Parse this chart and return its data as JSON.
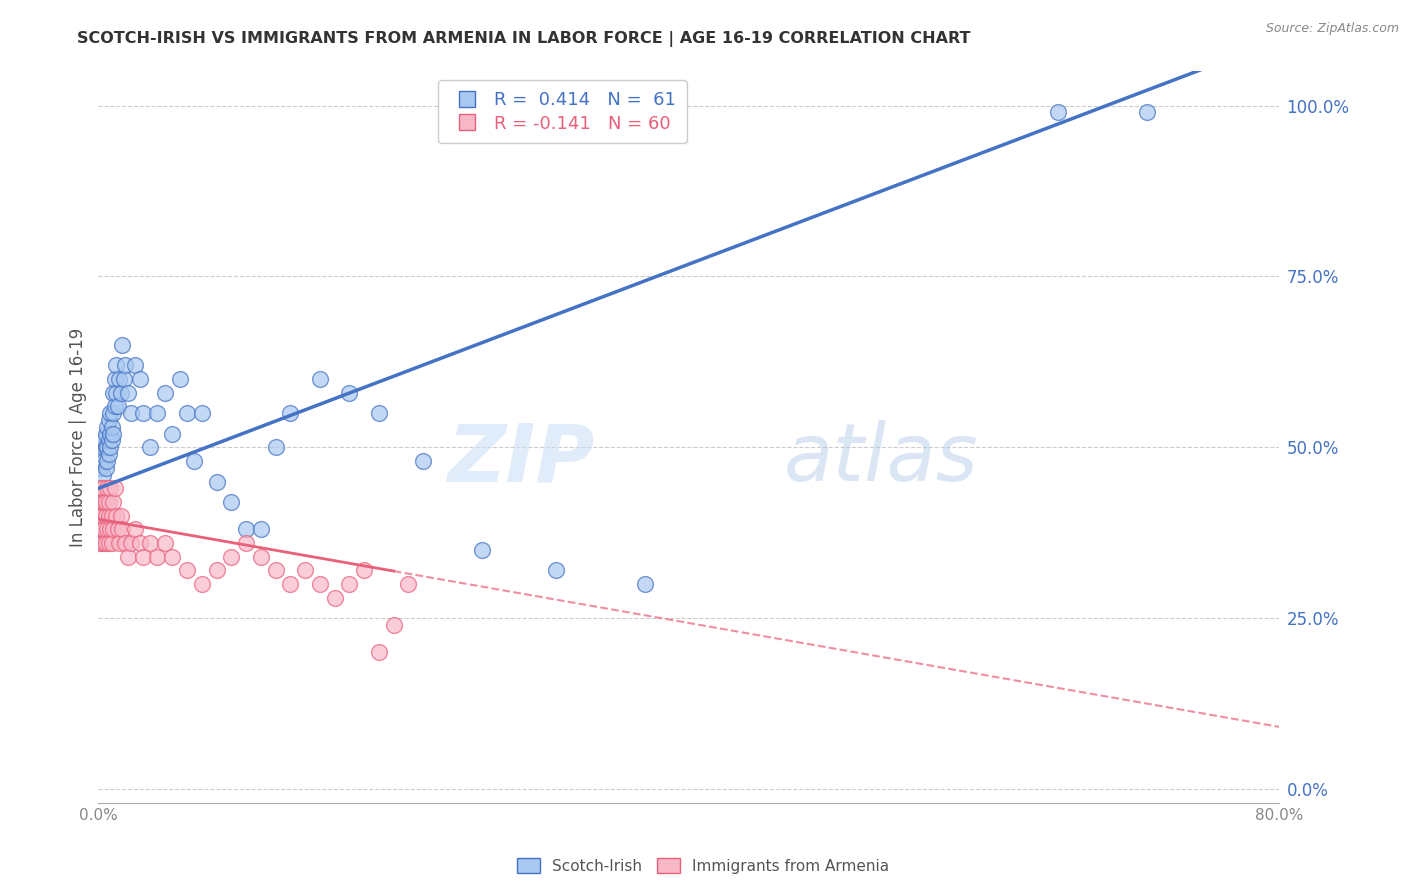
{
  "title": "SCOTCH-IRISH VS IMMIGRANTS FROM ARMENIA IN LABOR FORCE | AGE 16-19 CORRELATION CHART",
  "source": "Source: ZipAtlas.com",
  "ylabel": "In Labor Force | Age 16-19",
  "xlim": [
    0.0,
    0.8
  ],
  "ylim": [
    -0.02,
    1.05
  ],
  "blue_R": 0.414,
  "blue_N": 61,
  "pink_R": -0.141,
  "pink_N": 60,
  "blue_color": "#A8C8F0",
  "blue_line_color": "#4472C4",
  "pink_color": "#F8B8C8",
  "pink_line_color": "#E8607A",
  "legend_label_blue": "Scotch-Irish",
  "legend_label_pink": "Immigrants from Armenia",
  "watermark_zip": "ZIP",
  "watermark_atlas": "atlas",
  "background_color": "#FFFFFF",
  "grid_color": "#CCCCCC",
  "blue_line_intercept": 0.44,
  "blue_line_slope": 0.82,
  "pink_line_intercept": 0.395,
  "pink_line_slope": -0.38,
  "blue_x": [
    0.001,
    0.002,
    0.003,
    0.003,
    0.004,
    0.004,
    0.005,
    0.005,
    0.005,
    0.006,
    0.006,
    0.006,
    0.007,
    0.007,
    0.007,
    0.008,
    0.008,
    0.008,
    0.009,
    0.009,
    0.01,
    0.01,
    0.01,
    0.011,
    0.011,
    0.012,
    0.012,
    0.013,
    0.014,
    0.015,
    0.016,
    0.017,
    0.018,
    0.02,
    0.022,
    0.025,
    0.028,
    0.03,
    0.035,
    0.04,
    0.045,
    0.05,
    0.055,
    0.06,
    0.065,
    0.07,
    0.08,
    0.09,
    0.1,
    0.11,
    0.12,
    0.13,
    0.15,
    0.17,
    0.19,
    0.22,
    0.26,
    0.31,
    0.37,
    0.65,
    0.71
  ],
  "blue_y": [
    0.47,
    0.49,
    0.46,
    0.5,
    0.48,
    0.51,
    0.47,
    0.5,
    0.52,
    0.48,
    0.5,
    0.53,
    0.49,
    0.51,
    0.54,
    0.5,
    0.52,
    0.55,
    0.51,
    0.53,
    0.52,
    0.55,
    0.58,
    0.56,
    0.6,
    0.58,
    0.62,
    0.56,
    0.6,
    0.58,
    0.65,
    0.6,
    0.62,
    0.58,
    0.55,
    0.62,
    0.6,
    0.55,
    0.5,
    0.55,
    0.58,
    0.52,
    0.6,
    0.55,
    0.48,
    0.55,
    0.45,
    0.42,
    0.38,
    0.38,
    0.5,
    0.55,
    0.6,
    0.58,
    0.55,
    0.48,
    0.35,
    0.32,
    0.3,
    0.99,
    0.99
  ],
  "pink_x": [
    0.001,
    0.001,
    0.001,
    0.002,
    0.002,
    0.002,
    0.002,
    0.003,
    0.003,
    0.003,
    0.003,
    0.004,
    0.004,
    0.004,
    0.005,
    0.005,
    0.005,
    0.006,
    0.006,
    0.007,
    0.007,
    0.007,
    0.008,
    0.008,
    0.009,
    0.009,
    0.01,
    0.01,
    0.011,
    0.012,
    0.013,
    0.014,
    0.015,
    0.016,
    0.018,
    0.02,
    0.022,
    0.025,
    0.028,
    0.03,
    0.035,
    0.04,
    0.045,
    0.05,
    0.06,
    0.07,
    0.08,
    0.09,
    0.1,
    0.11,
    0.12,
    0.13,
    0.14,
    0.15,
    0.16,
    0.17,
    0.18,
    0.19,
    0.2,
    0.21
  ],
  "pink_y": [
    0.4,
    0.36,
    0.42,
    0.38,
    0.44,
    0.4,
    0.36,
    0.42,
    0.38,
    0.44,
    0.4,
    0.36,
    0.42,
    0.38,
    0.4,
    0.36,
    0.42,
    0.38,
    0.44,
    0.4,
    0.36,
    0.42,
    0.38,
    0.44,
    0.4,
    0.36,
    0.42,
    0.38,
    0.44,
    0.4,
    0.38,
    0.36,
    0.4,
    0.38,
    0.36,
    0.34,
    0.36,
    0.38,
    0.36,
    0.34,
    0.36,
    0.34,
    0.36,
    0.34,
    0.32,
    0.3,
    0.32,
    0.34,
    0.36,
    0.34,
    0.32,
    0.3,
    0.32,
    0.3,
    0.28,
    0.3,
    0.32,
    0.2,
    0.24,
    0.3
  ]
}
